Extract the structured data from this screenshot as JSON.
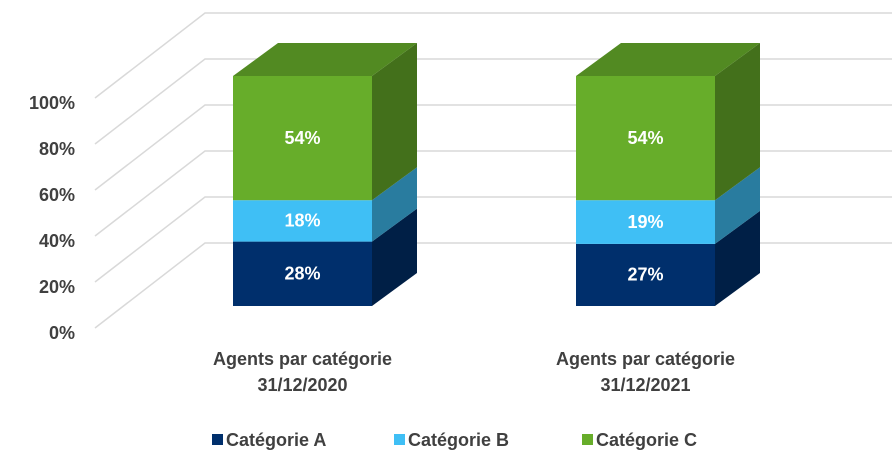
{
  "chart_data": {
    "type": "bar3d_stacked",
    "categories": [
      "Agents par catégorie 31/12/2020",
      "Agents par catégorie 31/12/2021"
    ],
    "series": [
      {
        "name": "Catégorie A",
        "color": "#002f6c",
        "values": [
          28,
          27
        ],
        "value_labels": [
          "28%",
          "27%"
        ]
      },
      {
        "name": "Catégorie B",
        "color": "#3fbff5",
        "values": [
          18,
          19
        ],
        "value_labels": [
          "18%",
          "19%"
        ]
      },
      {
        "name": "Catégorie C",
        "color": "#67ad2a",
        "values": [
          54,
          54
        ],
        "value_labels": [
          "54%",
          "54%"
        ]
      }
    ],
    "ylim": [
      0,
      100
    ],
    "yticks": [
      {
        "value": 0,
        "label": "0%"
      },
      {
        "value": 20,
        "label": "20%"
      },
      {
        "value": 40,
        "label": "40%"
      },
      {
        "value": 60,
        "label": "60%"
      },
      {
        "value": 80,
        "label": "80%"
      },
      {
        "value": 100,
        "label": "100%"
      }
    ],
    "grid": true,
    "legend": "bottom"
  }
}
